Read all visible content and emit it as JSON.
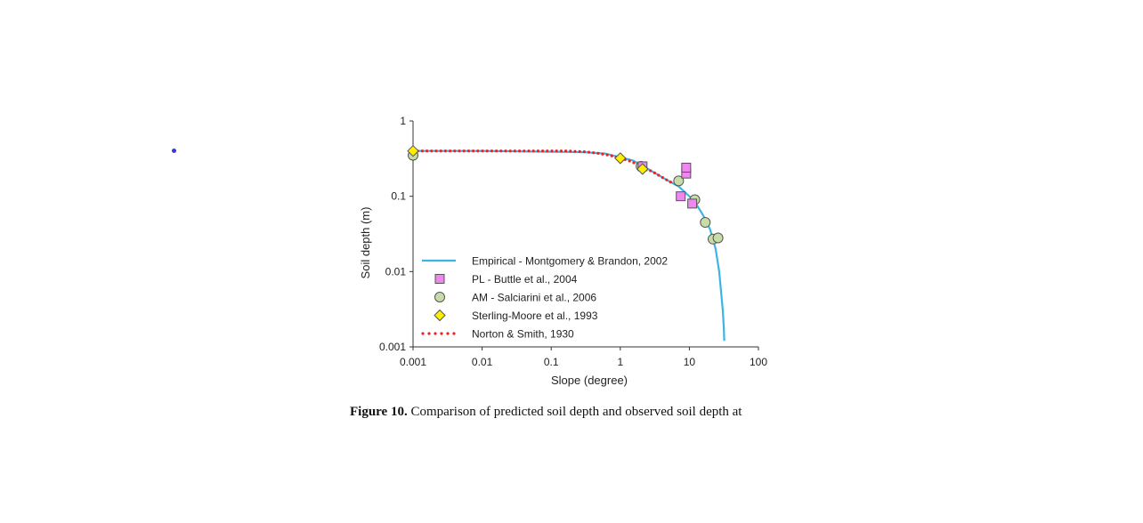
{
  "caption": {
    "label": "Figure 10.",
    "text": " Comparison of predicted soil depth and observed soil depth at"
  },
  "chart_data": {
    "type": "scatter",
    "title": "",
    "xlabel": "Slope (degree)",
    "ylabel": "Soil depth (m)",
    "xscale": "log",
    "yscale": "log",
    "xlim": [
      0.001,
      100
    ],
    "ylim": [
      0.001,
      1
    ],
    "xticks": [
      "0.001",
      "0.01",
      "0.1",
      "1",
      "10",
      "100"
    ],
    "yticks": [
      "0.001",
      "0.01",
      "0.1",
      "1"
    ],
    "legend_position": "lower-left",
    "colors": {
      "empirical": "#3cb4e6",
      "pl": "#ee88ee",
      "am": "#c8dca8",
      "sterling": "#ffee00",
      "norton": "#ee2222"
    },
    "series": [
      {
        "name": "Empirical - Montgomery & Brandon, 2002",
        "kind": "line",
        "x": [
          0.001,
          0.01,
          0.1,
          0.3,
          0.6,
          1,
          1.5,
          2,
          3,
          5,
          7,
          10,
          13,
          16,
          20,
          24,
          27,
          29,
          30.5,
          31.5,
          32
        ],
        "y": [
          0.4,
          0.4,
          0.39,
          0.385,
          0.37,
          0.33,
          0.3,
          0.26,
          0.21,
          0.16,
          0.135,
          0.1,
          0.075,
          0.055,
          0.036,
          0.02,
          0.01,
          0.005,
          0.003,
          0.0018,
          0.0012
        ]
      },
      {
        "name": "PL - Buttle et al., 2004",
        "kind": "square",
        "x": [
          2.1,
          7.5,
          9,
          9,
          11
        ],
        "y": [
          0.25,
          0.1,
          0.2,
          0.24,
          0.08
        ]
      },
      {
        "name": "AM - Salciarini et al., 2006",
        "kind": "circle",
        "x": [
          0.001,
          2,
          7,
          12,
          17,
          22,
          26
        ],
        "y": [
          0.35,
          0.25,
          0.16,
          0.09,
          0.045,
          0.027,
          0.028
        ]
      },
      {
        "name": "Sterling-Moore et al., 1993",
        "kind": "diamond",
        "x": [
          0.001,
          1,
          2.1
        ],
        "y": [
          0.4,
          0.32,
          0.23
        ]
      },
      {
        "name": "Norton & Smith, 1930",
        "kind": "dotted",
        "x": [
          0.001,
          0.0013,
          0.0017,
          0.0022,
          0.003,
          0.004,
          0.005,
          0.007,
          0.01,
          0.013,
          0.017,
          0.022,
          0.03,
          0.04,
          0.05,
          0.07,
          0.1,
          0.13,
          0.17,
          0.22,
          0.3,
          0.4,
          0.5,
          0.7,
          1,
          1.3,
          1.7,
          2.2,
          3,
          4,
          5,
          6
        ],
        "y": [
          0.4,
          0.4,
          0.4,
          0.4,
          0.4,
          0.4,
          0.4,
          0.4,
          0.4,
          0.4,
          0.4,
          0.4,
          0.4,
          0.4,
          0.4,
          0.4,
          0.4,
          0.4,
          0.4,
          0.395,
          0.39,
          0.38,
          0.37,
          0.35,
          0.32,
          0.3,
          0.27,
          0.24,
          0.21,
          0.18,
          0.16,
          0.145
        ]
      }
    ]
  }
}
